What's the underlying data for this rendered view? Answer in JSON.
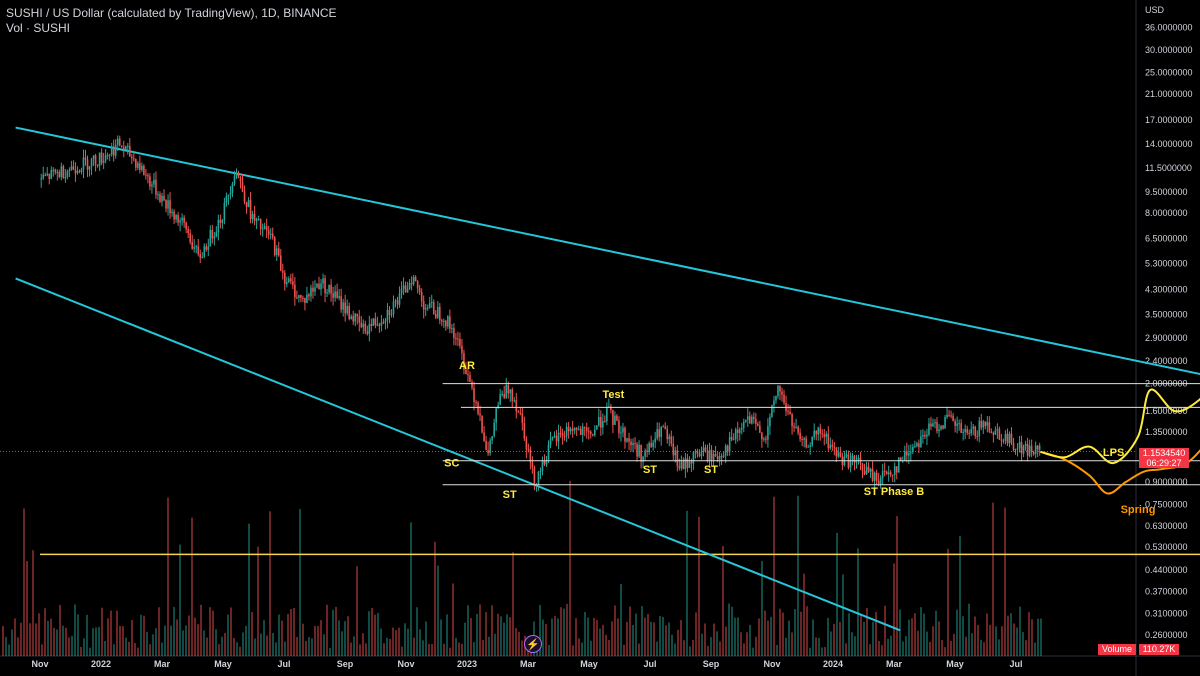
{
  "header": {
    "title": "SUSHI / US Dollar (calculated by TradingView), 1D, BINANCE",
    "subtitle": "Vol · SUSHI"
  },
  "colors": {
    "background": "#000000",
    "up": "#26a69a",
    "down": "#ef5350",
    "trendline": "#26c6da",
    "range_line": "#e0e0e0",
    "support_line": "#f5d64e",
    "projection_yellow": "#ffeb3b",
    "projection_orange": "#ff9800",
    "price_tag": "#f23645",
    "volume_tag": "#f23645"
  },
  "chart_data": {
    "type": "candlestick",
    "scale": "log",
    "currency_label": "USD",
    "price_ticks": [
      "36.0000000",
      "30.0000000",
      "25.0000000",
      "21.0000000",
      "17.0000000",
      "14.0000000",
      "11.5000000",
      "9.5000000",
      "8.0000000",
      "6.5000000",
      "5.3000000",
      "4.3000000",
      "3.5000000",
      "2.9000000",
      "2.4000000",
      "2.0000000",
      "1.6000000",
      "1.3500000",
      "0.9000000",
      "0.7500000",
      "0.6300000",
      "0.5300000",
      "0.4400000",
      "0.3700000",
      "0.3100000",
      "0.2600000"
    ],
    "price_tick_values": [
      36,
      30,
      25,
      21,
      17,
      14,
      11.5,
      9.5,
      8,
      6.5,
      5.3,
      4.3,
      3.5,
      2.9,
      2.4,
      2.0,
      1.6,
      1.35,
      0.9,
      0.75,
      0.63,
      0.53,
      0.44,
      0.37,
      0.31,
      0.26
    ],
    "time_ticks": [
      "Nov",
      "2022",
      "Mar",
      "May",
      "Jul",
      "Sep",
      "Nov",
      "2023",
      "Mar",
      "May",
      "Jul",
      "Sep",
      "Nov",
      "2024",
      "Mar",
      "May",
      "Jul"
    ],
    "current_price": "1.1534540",
    "countdown": "06:29:27",
    "volume_label": "Volume",
    "volume_value": "110.27K",
    "price_path": [
      [
        0,
        10.5
      ],
      [
        0.5,
        11.5
      ],
      [
        1,
        12.5
      ],
      [
        1.3,
        14.0
      ],
      [
        1.6,
        12.0
      ],
      [
        2.0,
        9.0
      ],
      [
        2.4,
        7.0
      ],
      [
        2.6,
        5.5
      ],
      [
        3.0,
        8.0
      ],
      [
        3.2,
        11.5
      ],
      [
        3.5,
        7.5
      ],
      [
        3.8,
        6.5
      ],
      [
        4.0,
        4.8
      ],
      [
        4.3,
        3.9
      ],
      [
        4.6,
        4.6
      ],
      [
        5.0,
        3.7
      ],
      [
        5.3,
        3.1
      ],
      [
        5.6,
        3.4
      ],
      [
        5.9,
        4.0
      ],
      [
        6.1,
        4.8
      ],
      [
        6.3,
        3.8
      ],
      [
        6.6,
        3.5
      ],
      [
        6.8,
        3.0
      ],
      [
        7.0,
        2.2
      ],
      [
        7.2,
        1.6
      ],
      [
        7.35,
        1.1
      ],
      [
        7.5,
        1.7
      ],
      [
        7.7,
        1.95
      ],
      [
        7.9,
        1.5
      ],
      [
        8.1,
        0.9
      ],
      [
        8.4,
        1.25
      ],
      [
        8.7,
        1.4
      ],
      [
        9.0,
        1.3
      ],
      [
        9.3,
        1.6
      ],
      [
        9.6,
        1.3
      ],
      [
        9.9,
        1.1
      ],
      [
        10.2,
        1.4
      ],
      [
        10.5,
        1.0
      ],
      [
        10.8,
        1.15
      ],
      [
        11.1,
        1.1
      ],
      [
        11.4,
        1.3
      ],
      [
        11.6,
        1.5
      ],
      [
        11.9,
        1.3
      ],
      [
        12.1,
        1.95
      ],
      [
        12.3,
        1.5
      ],
      [
        12.5,
        1.2
      ],
      [
        12.8,
        1.35
      ],
      [
        13.1,
        1.1
      ],
      [
        13.4,
        1.05
      ],
      [
        13.7,
        0.92
      ],
      [
        14.0,
        1.0
      ],
      [
        14.3,
        1.2
      ],
      [
        14.6,
        1.4
      ],
      [
        14.9,
        1.5
      ],
      [
        15.2,
        1.3
      ],
      [
        15.5,
        1.45
      ],
      [
        15.8,
        1.3
      ],
      [
        16.1,
        1.18
      ],
      [
        16.4,
        1.15
      ]
    ],
    "trendlines": [
      {
        "from": [
          -0.4,
          16.0
        ],
        "to": [
          26.7,
          0.98
        ]
      },
      {
        "from": [
          -0.4,
          4.7
        ],
        "to": [
          14.1,
          0.27
        ]
      }
    ],
    "range_lines": [
      {
        "price": 2.0,
        "from": 6.6,
        "to": 21.3
      },
      {
        "price": 1.65,
        "from": 6.9,
        "to": 23.8
      },
      {
        "price": 1.07,
        "from": 6.6,
        "to": 24.8
      },
      {
        "price": 0.88,
        "from": 6.6,
        "to": 24.6
      }
    ],
    "support_line": {
      "price": 0.5,
      "from": 0,
      "to": 28.6
    },
    "projection_yellow": [
      [
        16.4,
        1.15
      ],
      [
        16.8,
        1.1
      ],
      [
        17.2,
        1.2
      ],
      [
        17.6,
        1.05
      ],
      [
        18.0,
        1.3
      ],
      [
        18.2,
        1.9
      ],
      [
        18.6,
        1.6
      ],
      [
        19.0,
        1.75
      ],
      [
        19.3,
        2.1
      ],
      [
        19.6,
        1.85
      ],
      [
        19.9,
        2.3
      ],
      [
        20.2,
        2.15
      ],
      [
        20.6,
        2.9
      ]
    ],
    "projection_orange": [
      [
        16.4,
        1.15
      ],
      [
        16.8,
        1.08
      ],
      [
        17.2,
        0.95
      ],
      [
        17.5,
        0.82
      ],
      [
        17.8,
        0.9
      ],
      [
        18.1,
        0.98
      ],
      [
        18.4,
        1.0
      ],
      [
        18.8,
        1.05
      ],
      [
        19.2,
        1.3
      ],
      [
        19.6,
        1.75
      ],
      [
        20.0,
        1.9
      ],
      [
        20.4,
        1.8
      ],
      [
        20.8,
        2.1
      ],
      [
        21.2,
        1.9
      ],
      [
        21.5,
        2.1
      ],
      [
        21.7,
        2.7
      ]
    ],
    "annotations": [
      {
        "text": "AR",
        "t": 7.0,
        "price": 2.25,
        "color": "#ffeb3b"
      },
      {
        "text": "Test",
        "t": 9.4,
        "price": 1.78,
        "color": "#ffeb3b"
      },
      {
        "text": "SC",
        "t": 6.75,
        "price": 1.02,
        "color": "#ffeb3b"
      },
      {
        "text": "ST",
        "t": 7.7,
        "price": 0.79,
        "color": "#ffeb3b"
      },
      {
        "text": "ST",
        "t": 10.0,
        "price": 0.97,
        "color": "#ffeb3b"
      },
      {
        "text": "ST",
        "t": 11.0,
        "price": 0.97,
        "color": "#ffeb3b"
      },
      {
        "text": "ST Phase B",
        "t": 14.0,
        "price": 0.81,
        "color": "#ffeb3b"
      },
      {
        "text": "LPS",
        "t": 17.6,
        "price": 1.11,
        "color": "#ffeb3b"
      },
      {
        "text": "Spring",
        "t": 18.0,
        "price": 0.7,
        "color": "#ff9800"
      }
    ]
  }
}
